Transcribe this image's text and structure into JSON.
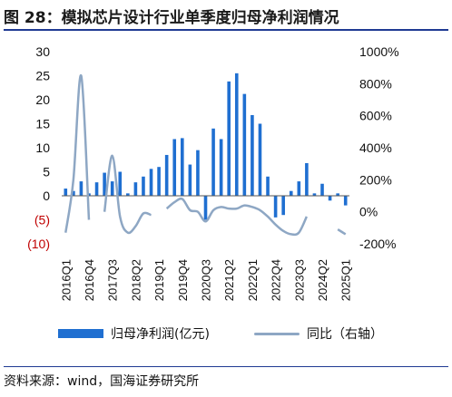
{
  "title": "图 28：模拟芯片设计行业单季度归母净利润情况",
  "source": "资料来源：wind，国海证券研究所",
  "colors": {
    "bar": "#1f6fd1",
    "line": "#8ea7c4",
    "negative_tick": "#c00000"
  },
  "chart_data": {
    "type": "bar",
    "categories": [
      "2016Q1",
      "2016Q2",
      "2016Q3",
      "2016Q4",
      "2017Q1",
      "2017Q2",
      "2017Q3",
      "2017Q4",
      "2018Q1",
      "2018Q2",
      "2018Q3",
      "2018Q4",
      "2019Q1",
      "2019Q2",
      "2019Q3",
      "2019Q4",
      "2020Q1",
      "2020Q2",
      "2020Q3",
      "2020Q4",
      "2021Q1",
      "2021Q2",
      "2021Q3",
      "2021Q4",
      "2022Q1",
      "2022Q2",
      "2022Q3",
      "2022Q4",
      "2023Q1",
      "2023Q2",
      "2023Q3",
      "2023Q4",
      "2024Q1",
      "2024Q2",
      "2024Q3",
      "2024Q4",
      "2025Q1"
    ],
    "tick_labels": [
      "2016Q1",
      "2016Q4",
      "2017Q3",
      "2018Q2",
      "2019Q1",
      "2019Q4",
      "2020Q3",
      "2021Q2",
      "2022Q1",
      "2022Q4",
      "2023Q3",
      "2024Q2",
      "2025Q1"
    ],
    "series": [
      {
        "name": "归母净利润(亿元)",
        "axis": "left",
        "type": "bar",
        "values": [
          1.5,
          1.0,
          3.0,
          0.5,
          2.8,
          4.8,
          3.0,
          5.0,
          0.5,
          2.8,
          4.0,
          5.6,
          6.0,
          8.5,
          11.8,
          12.0,
          6.5,
          9.5,
          -5.0,
          14.0,
          11.8,
          23.8,
          25.5,
          21.2,
          16.8,
          15.0,
          4.0,
          -4.5,
          -4.0,
          1.0,
          3.0,
          6.8,
          0.5,
          2.5,
          -1.0,
          0.5,
          -2.0
        ]
      },
      {
        "name": "同比（右轴）",
        "axis": "right",
        "type": "line",
        "values": [
          -130,
          200,
          850,
          -50,
          null,
          0,
          350,
          -30,
          -130,
          -90,
          -10,
          -20,
          null,
          20,
          60,
          80,
          10,
          0,
          -60,
          10,
          30,
          20,
          20,
          40,
          30,
          10,
          -30,
          -80,
          -120,
          -140,
          -130,
          -30,
          null,
          null,
          null,
          -110,
          -140
        ]
      }
    ],
    "y_left": {
      "ticks": [
        30,
        25,
        20,
        15,
        10,
        5,
        0,
        -5,
        -10
      ],
      "tick_labels": [
        "30",
        "25",
        "20",
        "15",
        "10",
        "5",
        "0",
        "(5)",
        "(10)"
      ],
      "range": [
        -10,
        30
      ]
    },
    "y_right": {
      "ticks": [
        1000,
        800,
        600,
        400,
        200,
        0,
        -200
      ],
      "tick_labels": [
        "1000%",
        "800%",
        "600%",
        "400%",
        "200%",
        "0%",
        "-200%"
      ],
      "range": [
        -200,
        1000
      ]
    },
    "grid": false,
    "legend_position": "bottom"
  }
}
